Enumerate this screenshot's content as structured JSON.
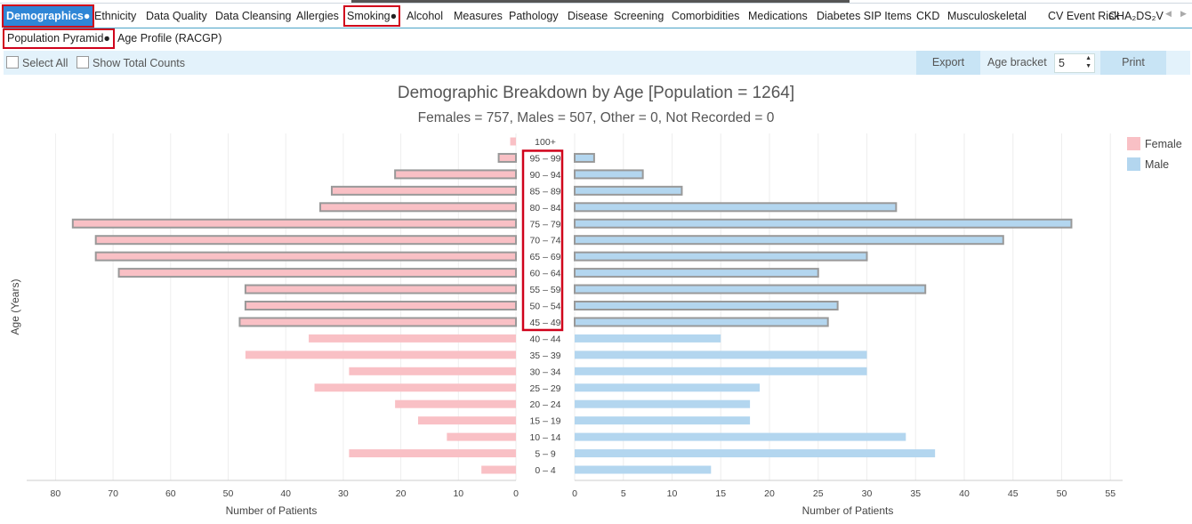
{
  "tabs": [
    {
      "label": "Demographics●",
      "active": true,
      "boxed": true
    },
    {
      "label": "Ethnicity"
    },
    {
      "label": "Data Quality"
    },
    {
      "label": "Data Cleansing"
    },
    {
      "label": "Allergies"
    },
    {
      "label": "Smoking●",
      "boxed": true
    },
    {
      "label": "Alcohol"
    },
    {
      "label": "Measures"
    },
    {
      "label": "Pathology"
    },
    {
      "label": "Disease"
    },
    {
      "label": "Screening"
    },
    {
      "label": "Comorbidities"
    },
    {
      "label": "Medications"
    },
    {
      "label": "Diabetes SIP Items"
    },
    {
      "label": "CKD"
    },
    {
      "label": "Musculoskeletal"
    },
    {
      "label": "CV Event Risk"
    },
    {
      "label": "CHA₂DS₂V"
    }
  ],
  "subtabs": [
    {
      "label": "Population Pyramid●",
      "active": true
    },
    {
      "label": "Age Profile (RACGP)"
    }
  ],
  "toolbar": {
    "select_all": "Select All",
    "show_total_counts": "Show Total Counts",
    "export": "Export",
    "age_bracket_label": "Age bracket",
    "age_bracket_value": "5",
    "print": "Print"
  },
  "chart_data": {
    "type": "bar",
    "title": "Demographic Breakdown by Age [Population = 1264]",
    "subtitle": "Females = 757, Males = 507, Other = 0, Not Recorded = 0",
    "ylabel": "Age (Years)",
    "xlabel_left": "Number of Patients",
    "xlabel_right": "Number of Patients",
    "categories": [
      "100+",
      "95 – 99",
      "90 – 94",
      "85 – 89",
      "80 – 84",
      "75 – 79",
      "70 – 74",
      "65 – 69",
      "60 – 64",
      "55 – 59",
      "50 – 54",
      "45 – 49",
      "40 – 44",
      "35 – 39",
      "30 – 34",
      "25 – 29",
      "20 – 24",
      "15 – 19",
      "10 – 14",
      "5 – 9",
      "0 – 4"
    ],
    "highlighted_categories": [
      "95 – 99",
      "90 – 94",
      "85 – 89",
      "80 – 84",
      "75 – 79",
      "70 – 74",
      "65 – 69",
      "60 – 64",
      "55 – 59",
      "50 – 54",
      "45 – 49"
    ],
    "series": [
      {
        "name": "Female",
        "color": "#f9c0c5",
        "values": [
          1,
          3,
          21,
          32,
          34,
          77,
          73,
          73,
          69,
          47,
          47,
          48,
          36,
          47,
          29,
          35,
          21,
          17,
          12,
          29,
          6
        ]
      },
      {
        "name": "Male",
        "color": "#b3d6ef",
        "values": [
          0,
          2,
          7,
          11,
          33,
          51,
          44,
          30,
          25,
          36,
          27,
          26,
          15,
          30,
          30,
          19,
          18,
          18,
          34,
          37,
          14
        ]
      }
    ],
    "female_axis": {
      "ticks": [
        80,
        70,
        60,
        50,
        40,
        30,
        20,
        10,
        0
      ],
      "max": 85
    },
    "male_axis": {
      "ticks": [
        0,
        5,
        10,
        15,
        20,
        25,
        30,
        35,
        40,
        45,
        50,
        55
      ],
      "max": 56
    },
    "legend_position": "top-right",
    "grid": true
  }
}
